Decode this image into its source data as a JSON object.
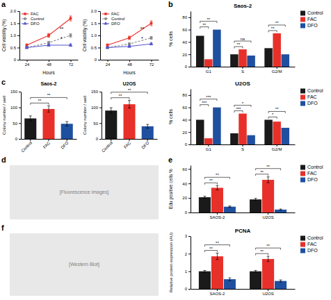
{
  "chart_data": [
    {
      "type": "line",
      "panel_label": "a",
      "xlabel": "Hours",
      "ylabel": "Cell viability (%)",
      "x": [
        24,
        48,
        72
      ],
      "xlim": [
        16,
        80
      ],
      "xticks": [
        24,
        48,
        72
      ],
      "ylim": [
        0,
        2.0
      ],
      "yticks": [
        0,
        0.5,
        {
          "value": 1.0,
          "label": "1.0"
        },
        1.5,
        {
          "value": 2.0,
          "label": "2.0"
        }
      ],
      "legend": "upper left",
      "annotations": [
        "**",
        "*"
      ],
      "series": [
        {
          "name": "FAC",
          "color": "#e8302a",
          "marker": "square",
          "line_style": "solid",
          "values": [
            0.6,
            1.0,
            1.7
          ],
          "errors": [
            0.05,
            0.08,
            0.1
          ]
        },
        {
          "name": "Control",
          "color": "#888888",
          "marker": "circle",
          "line_style": "dashed",
          "values": [
            0.5,
            0.7,
            1.0
          ],
          "errors": [
            0.04,
            0.06,
            0.07
          ]
        },
        {
          "name": "DFO",
          "color": "#5555cc",
          "marker": "triangle",
          "line_style": "solid",
          "values": [
            0.5,
            0.6,
            0.6
          ],
          "errors": [
            0.03,
            0.04,
            0.05
          ]
        }
      ]
    },
    {
      "type": "line",
      "xlabel": "Hours",
      "ylabel": "Cell viability (%)",
      "x": [
        24,
        48,
        72
      ],
      "xlim": [
        16,
        80
      ],
      "xticks": [
        24,
        48,
        72
      ],
      "ylim": [
        0,
        2.0
      ],
      "yticks": [
        0,
        0.5,
        {
          "value": 1.0,
          "label": "1.0"
        },
        1.5,
        {
          "value": 2.0,
          "label": "2.0"
        }
      ],
      "legend": "upper left",
      "annotations": [
        "**",
        "*"
      ],
      "series": [
        {
          "name": "FAC",
          "color": "#e8302a",
          "marker": "square",
          "line_style": "solid",
          "values": [
            0.6,
            0.9,
            1.5
          ],
          "errors": [
            0.05,
            0.07,
            0.1
          ]
        },
        {
          "name": "Control",
          "color": "#888888",
          "marker": "circle",
          "line_style": "dashed",
          "values": [
            0.5,
            0.65,
            0.9
          ],
          "errors": [
            0.04,
            0.05,
            0.06
          ]
        },
        {
          "name": "DFO",
          "color": "#5555cc",
          "marker": "triangle",
          "line_style": "solid",
          "values": [
            0.5,
            0.55,
            0.65
          ],
          "errors": [
            0.03,
            0.04,
            0.04
          ]
        }
      ]
    },
    {
      "type": "bar",
      "panel_label": "b",
      "title": "Saos-2",
      "ylabel": "% cells",
      "categories": [
        "G1",
        "S",
        "G2/M"
      ],
      "ylim": [
        0,
        90
      ],
      "yticks": [
        0,
        20,
        40,
        60,
        80
      ],
      "legend": "upper right",
      "series": [
        {
          "name": "Control",
          "color": "#1a1a1a",
          "values": [
            50,
            20,
            30
          ]
        },
        {
          "name": "FAC",
          "color": "#e8302a",
          "values": [
            12,
            28,
            54
          ]
        },
        {
          "name": "DFO",
          "color": "#1f50a0",
          "values": [
            60,
            18,
            20
          ]
        }
      ],
      "annotations": [
        {
          "category": "G1",
          "between": [
            "Control",
            "FAC"
          ],
          "text": "**"
        },
        {
          "category": "G1",
          "between": [
            "Control",
            "DFO"
          ],
          "text": "**"
        },
        {
          "category": "S",
          "between": [
            "Control",
            "FAC"
          ],
          "text": "**"
        },
        {
          "category": "S",
          "between": [
            "Control",
            "DFO"
          ],
          "text": "ns"
        },
        {
          "category": "G2/M",
          "between": [
            "Control",
            "FAC"
          ],
          "text": "**"
        },
        {
          "category": "G2/M",
          "between": [
            "Control",
            "DFO"
          ],
          "text": "**"
        }
      ]
    },
    {
      "type": "bar",
      "title": "U2OS",
      "ylabel": "% cells",
      "categories": [
        "G1",
        "S",
        "G2/M"
      ],
      "ylim": [
        0,
        90
      ],
      "yticks": [
        0,
        20,
        40,
        60,
        80
      ],
      "legend": "upper right",
      "series": [
        {
          "name": "Control",
          "color": "#1a1a1a",
          "values": [
            40,
            18,
            40
          ]
        },
        {
          "name": "FAC",
          "color": "#e8302a",
          "values": [
            10,
            50,
            37
          ]
        },
        {
          "name": "DFO",
          "color": "#1f50a0",
          "values": [
            60,
            15,
            27
          ]
        }
      ],
      "annotations": [
        {
          "category": "G1",
          "between": [
            "Control",
            "FAC"
          ],
          "text": "***"
        },
        {
          "category": "G1",
          "between": [
            "Control",
            "DFO"
          ],
          "text": "***"
        },
        {
          "category": "S",
          "between": [
            "Control",
            "FAC"
          ],
          "text": "***"
        },
        {
          "category": "S",
          "between": [
            "Control",
            "DFO"
          ],
          "text": "*"
        },
        {
          "category": "G2/M",
          "between": [
            "Control",
            "FAC"
          ],
          "text": "*"
        },
        {
          "category": "G2/M",
          "between": [
            "Control",
            "DFO"
          ],
          "text": "**"
        }
      ]
    },
    {
      "type": "bar",
      "panel_label": "c",
      "title": "Saos-2",
      "ylabel": "Colony number / well",
      "categories": [
        "Control",
        "FAC",
        "DFO"
      ],
      "values": [
        65,
        95,
        48
      ],
      "errors": [
        8,
        10,
        7
      ],
      "colors": [
        "#1a1a1a",
        "#e8302a",
        "#1f50a0"
      ],
      "ylim": [
        0,
        150
      ],
      "yticks": [
        0,
        50,
        100,
        150
      ],
      "annotations": [
        {
          "between": [
            "Control",
            "FAC"
          ],
          "text": "**"
        },
        {
          "between": [
            "Control",
            "DFO"
          ],
          "text": "**"
        }
      ]
    },
    {
      "type": "bar",
      "title": "U2OS",
      "ylabel": "Colony number / well",
      "categories": [
        "Control",
        "FAC",
        "DFO"
      ],
      "values": [
        90,
        110,
        40
      ],
      "errors": [
        9,
        12,
        6
      ],
      "colors": [
        "#1a1a1a",
        "#e8302a",
        "#1f50a0"
      ],
      "ylim": [
        0,
        150
      ],
      "yticks": [
        0,
        50,
        100,
        150
      ],
      "annotations": [
        {
          "between": [
            "Control",
            "FAC"
          ],
          "text": "**"
        },
        {
          "between": [
            "Control",
            "DFO"
          ],
          "text": "**"
        }
      ]
    },
    {
      "type": "image",
      "panel_label": "d",
      "annotations": [
        "[Fluorescence images]"
      ]
    },
    {
      "type": "bar",
      "panel_label": "e",
      "ylabel": "Edu positive cells %",
      "categories": [
        "SAOS-2",
        "U2OS"
      ],
      "ylim": [
        0,
        65
      ],
      "yticks": [
        0,
        20,
        40,
        60
      ],
      "legend": "upper right",
      "series": [
        {
          "name": "Control",
          "color": "#1a1a1a",
          "values": [
            21,
            18
          ],
          "errors": [
            1.5,
            1.5
          ]
        },
        {
          "name": "FAC",
          "color": "#e8302a",
          "values": [
            34,
            45
          ],
          "errors": [
            3.0,
            4.0
          ]
        },
        {
          "name": "DFO",
          "color": "#1f50a0",
          "values": [
            8,
            4
          ],
          "errors": [
            1.0,
            0.8
          ]
        }
      ],
      "annotations": [
        {
          "category": "SAOS-2",
          "between": [
            "Control",
            "FAC"
          ],
          "text": "**"
        },
        {
          "category": "SAOS-2",
          "between": [
            "Control",
            "DFO"
          ],
          "text": "**"
        },
        {
          "category": "U2OS",
          "between": [
            "Control",
            "FAC"
          ],
          "text": "**"
        },
        {
          "category": "U2OS",
          "between": [
            "Control",
            "DFO"
          ],
          "text": "**"
        }
      ]
    },
    {
      "type": "image",
      "panel_label": "f",
      "annotations": [
        "[Western Blot]"
      ]
    },
    {
      "type": "bar",
      "title": "PCNA",
      "ylabel": "Relative protein expression (AU)",
      "categories": [
        "SAOS-2",
        "U2OS"
      ],
      "ylim": [
        0,
        3.0
      ],
      "yticks": [
        0,
        1,
        2,
        3
      ],
      "legend": "upper right",
      "series": [
        {
          "name": "Control",
          "color": "#1a1a1a",
          "values": [
            1.0,
            1.0
          ],
          "errors": [
            0.05,
            0.05
          ]
        },
        {
          "name": "FAC",
          "color": "#e8302a",
          "values": [
            1.85,
            1.7
          ],
          "errors": [
            0.18,
            0.15
          ]
        },
        {
          "name": "DFO",
          "color": "#1f50a0",
          "values": [
            0.55,
            0.45
          ],
          "errors": [
            0.08,
            0.06
          ]
        }
      ],
      "annotations": [
        {
          "category": "SAOS-2",
          "between": [
            "Control",
            "FAC"
          ],
          "text": "**"
        },
        {
          "category": "SAOS-2",
          "between": [
            "Control",
            "DFO"
          ],
          "text": "**"
        },
        {
          "category": "U2OS",
          "between": [
            "Control",
            "FAC"
          ],
          "text": "**"
        },
        {
          "category": "U2OS",
          "between": [
            "Control",
            "DFO"
          ],
          "text": "**"
        }
      ]
    }
  ]
}
